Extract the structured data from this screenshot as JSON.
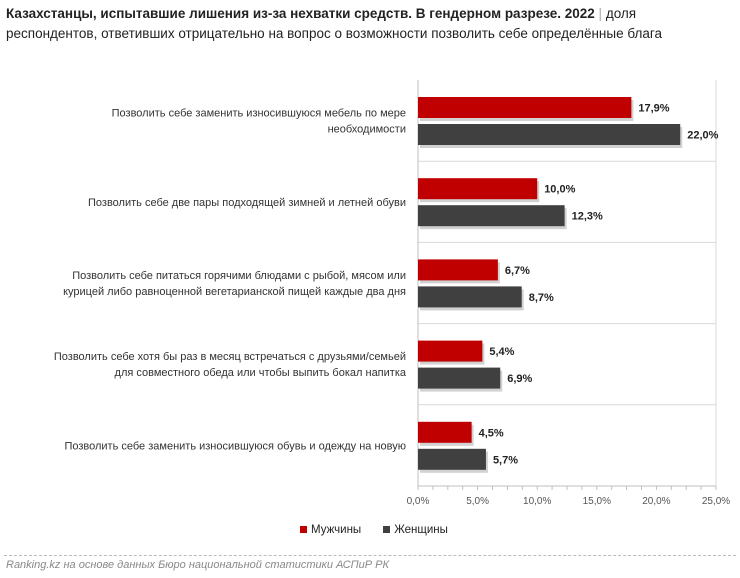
{
  "title": {
    "bold": "Казахстанцы, испытавшие лишения из-за нехватки средств. В гендерном разрезе. 2022",
    "separator": "|",
    "rest": "доля респондентов, ответивших отрицательно на вопрос о возможности позволить себе определённые блага"
  },
  "chart_data": {
    "type": "bar",
    "orientation": "horizontal",
    "categories": [
      [
        "Позволить себе заменить износившуюся мебель по мере",
        "необходимости"
      ],
      [
        "Позволить себе две пары подходящей зимней и летней обуви"
      ],
      [
        "Позволить себе питаться горячими блюдами с рыбой, мясом или",
        "курицей либо равноценной вегетарианской пищей каждые два дня"
      ],
      [
        "Позволить себе хотя бы раз в месяц встречаться с друзьями/семьей",
        "для совместного обеда или чтобы выпить бокал напитка"
      ],
      [
        "Позволить себе заменить износившуюся обувь и одежду на новую"
      ]
    ],
    "series": [
      {
        "name": "Мужчины",
        "color": "#c00000",
        "values": [
          17.9,
          10.0,
          6.7,
          5.4,
          4.5
        ],
        "labels": [
          "17,9%",
          "10,0%",
          "6,7%",
          "5,4%",
          "4,5%"
        ]
      },
      {
        "name": "Женщины",
        "color": "#404040",
        "values": [
          22.0,
          12.3,
          8.7,
          6.9,
          5.7
        ],
        "labels": [
          "22,0%",
          "12,3%",
          "8,7%",
          "6,9%",
          "5,7%"
        ]
      }
    ],
    "xlim": [
      0,
      25
    ],
    "xticks": [
      "0,0%",
      "5,0%",
      "10,0%",
      "15,0%",
      "20,0%",
      "25,0%"
    ],
    "legend_position": "bottom"
  },
  "source": "Ranking.kz на основе данных Бюро национальной статистики АСПиР РК"
}
